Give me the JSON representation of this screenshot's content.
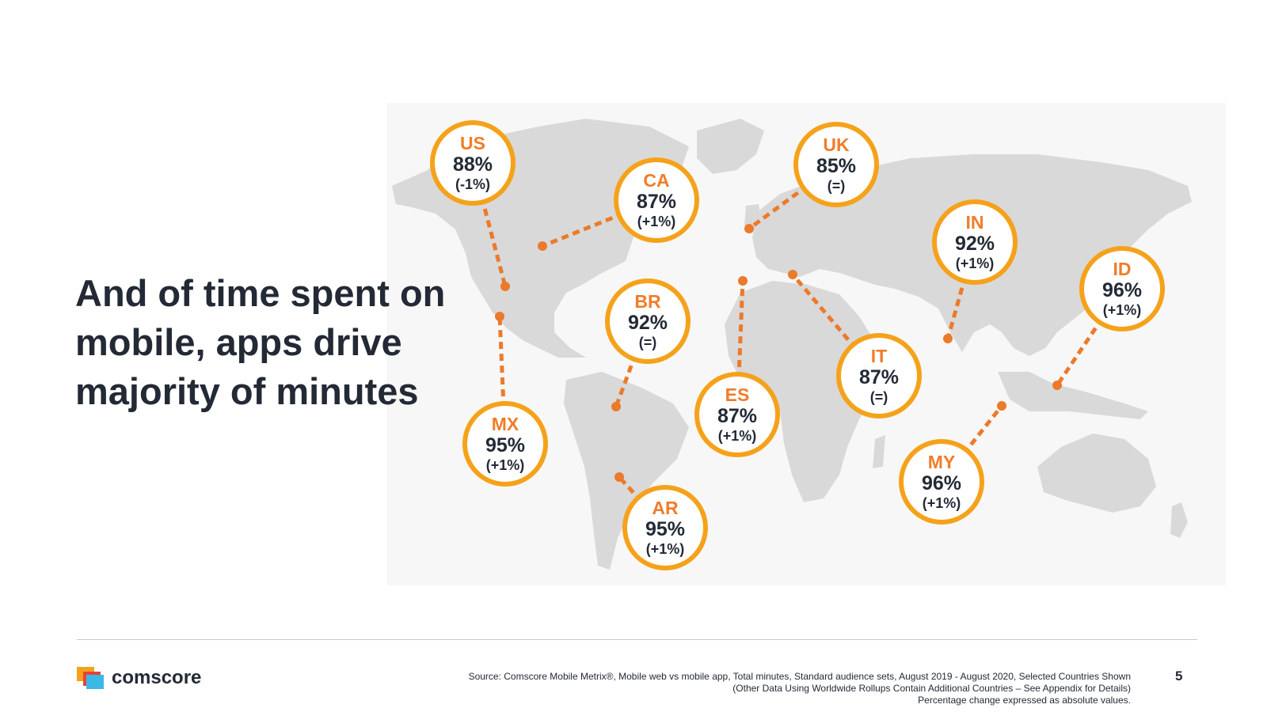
{
  "headline": "And of time spent on mobile, apps drive majority of minutes",
  "countries": [
    {
      "code": "US",
      "value": "88%",
      "change": "(-1%)"
    },
    {
      "code": "CA",
      "value": "87%",
      "change": "(+1%)"
    },
    {
      "code": "UK",
      "value": "85%",
      "change": "(=)"
    },
    {
      "code": "IN",
      "value": "92%",
      "change": "(+1%)"
    },
    {
      "code": "ID",
      "value": "96%",
      "change": "(+1%)"
    },
    {
      "code": "BR",
      "value": "92%",
      "change": "(=)"
    },
    {
      "code": "ES",
      "value": "87%",
      "change": "(+1%)"
    },
    {
      "code": "IT",
      "value": "87%",
      "change": "(=)"
    },
    {
      "code": "MX",
      "value": "95%",
      "change": "(+1%)"
    },
    {
      "code": "AR",
      "value": "95%",
      "change": "(+1%)"
    },
    {
      "code": "MY",
      "value": "96%",
      "change": "(+1%)"
    }
  ],
  "footer": {
    "logo_text": "comscore",
    "source_line1": "Source: Comscore Mobile Metrix®, Mobile web vs mobile app, Total minutes, Standard audience sets, August 2019 - August 2020, Selected Countries Shown",
    "source_line2": "(Other Data Using Worldwide Rollups Contain Additional Countries – See Appendix for Details)",
    "source_line3": "Percentage change expressed as absolute values.",
    "page_number": "5"
  },
  "colors": {
    "ring": "#f5a21b",
    "code_text": "#f07d29",
    "connector": "#ec7a2b",
    "land": "#d9d9d9",
    "text_dark": "#232a36"
  }
}
